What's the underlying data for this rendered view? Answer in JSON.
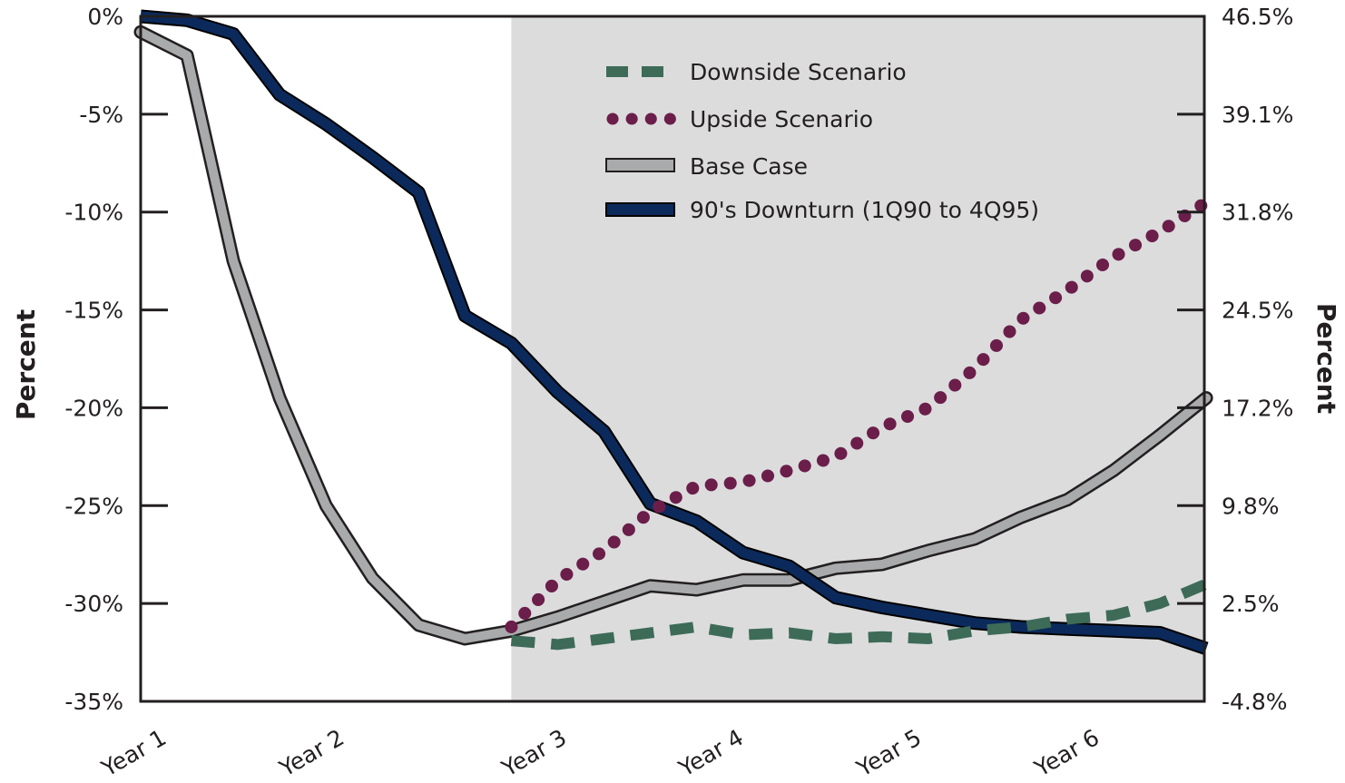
{
  "chart_data": {
    "type": "line",
    "x_ticks": [
      "Year 1",
      "Year 2",
      "Year 3",
      "Year 4",
      "Year 5",
      "Year 6"
    ],
    "y_left": {
      "label": "Percent",
      "ticks": [
        "0%",
        "-5%",
        "-10%",
        "-15%",
        "-20%",
        "-25%",
        "-30%",
        "-35%"
      ],
      "range": [
        -35,
        0
      ]
    },
    "y_right": {
      "label": "Percent",
      "ticks": [
        "46.5%",
        "39.1%",
        "31.8%",
        "24.5%",
        "17.2%",
        "9.8%",
        "2.5%",
        "-4.8%"
      ],
      "range": [
        -4.8,
        46.5
      ]
    },
    "shaded_region_start_x": 8,
    "series": [
      {
        "name": "Downside Scenario",
        "color": "#3d6b57",
        "style": "dashed",
        "x": [
          8,
          9,
          10,
          11,
          12,
          13,
          14,
          15,
          16,
          17,
          18,
          19,
          20,
          21,
          22,
          23
        ],
        "values": [
          -31.9,
          -32.1,
          -31.8,
          -31.5,
          -31.2,
          -31.6,
          -31.5,
          -31.8,
          -31.7,
          -31.8,
          -31.4,
          -31.2,
          -30.8,
          -30.6,
          -30.0,
          -29.0
        ]
      },
      {
        "name": "Upside Scenario",
        "color": "#6b1e4a",
        "style": "dotted",
        "x": [
          8,
          9,
          10,
          11,
          12,
          13,
          14,
          15,
          16,
          17,
          18,
          19,
          20,
          21,
          22,
          23
        ],
        "values": [
          -31.2,
          -28.8,
          -27.3,
          -25.3,
          -24.0,
          -23.8,
          -23.2,
          -22.5,
          -21.0,
          -20.0,
          -18.0,
          -15.5,
          -14.0,
          -12.3,
          -11.0,
          -9.5
        ]
      },
      {
        "name": "Base Case",
        "color": "#a9aaab",
        "style": "solid",
        "x": [
          0,
          1,
          2,
          3,
          4,
          5,
          6,
          7,
          8,
          9,
          10,
          11,
          12,
          13,
          14,
          15,
          16,
          17,
          18,
          19,
          20,
          21,
          22,
          23
        ],
        "values": [
          -0.8,
          -2.0,
          -12.5,
          -19.5,
          -25.0,
          -28.7,
          -31.1,
          -31.8,
          -31.4,
          -30.7,
          -29.9,
          -29.1,
          -29.3,
          -28.8,
          -28.8,
          -28.2,
          -28.0,
          -27.3,
          -26.7,
          -25.6,
          -24.7,
          -23.2,
          -21.4,
          -19.5
        ]
      },
      {
        "name": "90's Downturn (1Q90 to 4Q95)",
        "color": "#0b2a5b",
        "style": "solid",
        "x": [
          0,
          1,
          2,
          3,
          4,
          5,
          6,
          7,
          8,
          9,
          10,
          11,
          12,
          13,
          14,
          15,
          16,
          17,
          18,
          19,
          20,
          21,
          22,
          23
        ],
        "values": [
          0.0,
          -0.2,
          -0.9,
          -4.0,
          -5.5,
          -7.2,
          -9.0,
          -15.3,
          -16.7,
          -19.2,
          -21.2,
          -24.9,
          -25.8,
          -27.4,
          -28.1,
          -29.7,
          -30.2,
          -30.6,
          -31.0,
          -31.2,
          -31.3,
          -31.4,
          -31.5,
          -32.3
        ]
      }
    ],
    "legend_position": "top-center"
  }
}
